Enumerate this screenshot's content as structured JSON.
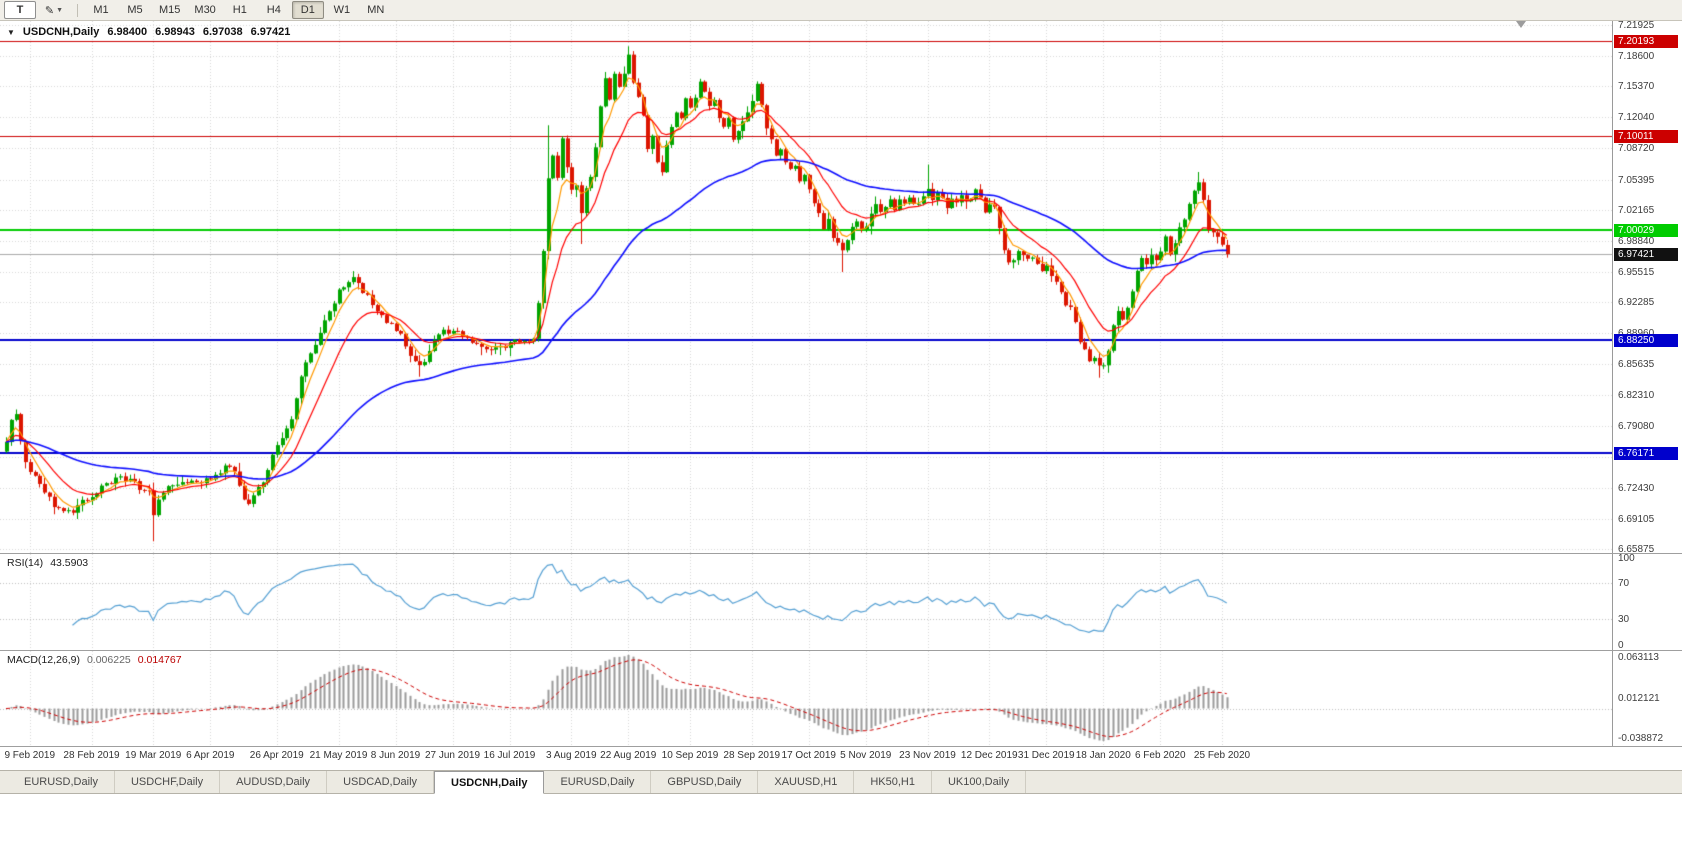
{
  "toolbar": {
    "text_tool_label": "T",
    "draw_tool_icon": "pencil-icon",
    "timeframes": [
      "M1",
      "M5",
      "M15",
      "M30",
      "H1",
      "H4",
      "D1",
      "W1",
      "MN"
    ],
    "active_timeframe": "D1"
  },
  "chart": {
    "header": {
      "symbol": "USDCNH,Daily",
      "open": "6.98400",
      "high": "6.98943",
      "low": "6.97038",
      "close": "6.97421"
    },
    "price_axis": [
      "7.21925",
      "7.18600",
      "7.15370",
      "7.12040",
      "7.08720",
      "7.05395",
      "7.02165",
      "6.98840",
      "6.95515",
      "6.92285",
      "6.88960",
      "6.85635",
      "6.82310",
      "6.79080",
      "6.75755",
      "6.72430",
      "6.69105",
      "6.65875"
    ],
    "levels": [
      {
        "price": 7.20193,
        "label": "7.20193",
        "color": "#cc0000",
        "width": 1
      },
      {
        "price": 7.10011,
        "label": "7.10011",
        "color": "#cc0000",
        "width": 1
      },
      {
        "price": 7.00029,
        "label": "7.00029",
        "color": "#00cc00",
        "width": 2
      },
      {
        "price": 6.8825,
        "label": "6.88250",
        "color": "#0000cc",
        "width": 2
      },
      {
        "price": 6.76171,
        "label": "6.76171",
        "color": "#0000cc",
        "width": 2
      }
    ],
    "current_price": {
      "price": 6.97421,
      "label": "6.97421",
      "color": "#111111"
    },
    "date_labels": [
      {
        "d": 5,
        "label": "9 Feb 2019"
      },
      {
        "d": 18,
        "label": "28 Feb 2019"
      },
      {
        "d": 31,
        "label": "19 Mar 2019"
      },
      {
        "d": 43,
        "label": "6 Apr 2019"
      },
      {
        "d": 57,
        "label": "26 Apr 2019"
      },
      {
        "d": 70,
        "label": "21 May 2019"
      },
      {
        "d": 82,
        "label": "8 Jun 2019"
      },
      {
        "d": 94,
        "label": "27 Jun 2019"
      },
      {
        "d": 106,
        "label": "16 Jul 2019"
      },
      {
        "d": 119,
        "label": "3 Aug 2019"
      },
      {
        "d": 131,
        "label": "22 Aug 2019"
      },
      {
        "d": 144,
        "label": "10 Sep 2019"
      },
      {
        "d": 157,
        "label": "28 Sep 2019"
      },
      {
        "d": 169,
        "label": "17 Oct 2019"
      },
      {
        "d": 181,
        "label": "5 Nov 2019"
      },
      {
        "d": 194,
        "label": "23 Nov 2019"
      },
      {
        "d": 207,
        "label": "12 Dec 2019"
      },
      {
        "d": 219,
        "label": "31 Dec 2019"
      },
      {
        "d": 231,
        "label": "18 Jan 2020"
      },
      {
        "d": 243,
        "label": "6 Feb 2020"
      },
      {
        "d": 256,
        "label": "25 Feb 2020"
      }
    ]
  },
  "rsi": {
    "name": "RSI(14)",
    "value": "43.5903",
    "axis_labels": [
      "100",
      "70",
      "30",
      "0"
    ],
    "levels": [
      70,
      30
    ]
  },
  "macd": {
    "name": "MACD(12,26,9)",
    "value_main": "0.006225",
    "value_signal": "0.014767",
    "axis_labels": [
      "0.063113",
      "0.012121",
      "-0.038872"
    ]
  },
  "tabs": {
    "items": [
      "EURUSD,Daily",
      "USDCHF,Daily",
      "AUDUSD,Daily",
      "USDCAD,Daily",
      "USDCNH,Daily",
      "EURUSD,Daily",
      "GBPUSD,Daily",
      "XAUUSD,H1",
      "HK50,H1",
      "UK100,Daily"
    ],
    "active_index": 4
  },
  "chart_data": {
    "type": "candlestick",
    "title": "USDCNH, Daily",
    "n_days": 258,
    "y_axis_range": [
      6.65875,
      7.21925
    ],
    "x_axis_dates": [
      "9 Feb 2019",
      "28 Feb 2019",
      "19 Mar 2019",
      "6 Apr 2019",
      "26 Apr 2019",
      "21 May 2019",
      "8 Jun 2019",
      "27 Jun 2019",
      "16 Jul 2019",
      "3 Aug 2019",
      "22 Aug 2019",
      "10 Sep 2019",
      "28 Sep 2019",
      "17 Oct 2019",
      "5 Nov 2019",
      "23 Nov 2019",
      "12 Dec 2019",
      "31 Dec 2019",
      "18 Jan 2020",
      "6 Feb 2020",
      "25 Feb 2020"
    ],
    "horizontal_levels": [
      7.20193,
      7.10011,
      7.00029,
      6.8825,
      6.76171
    ],
    "last_candle": {
      "open": 6.984,
      "high": 6.98943,
      "low": 6.97038,
      "close": 6.97421
    },
    "price_path_anchors": [
      [
        0,
        6.775
      ],
      [
        1,
        6.795
      ],
      [
        2,
        6.8
      ],
      [
        3,
        6.772
      ],
      [
        4,
        6.752
      ],
      [
        6,
        6.735
      ],
      [
        8,
        6.72
      ],
      [
        10,
        6.705
      ],
      [
        12,
        6.7
      ],
      [
        14,
        6.695
      ],
      [
        16,
        6.71
      ],
      [
        19,
        6.72
      ],
      [
        22,
        6.732
      ],
      [
        24,
        6.735
      ],
      [
        27,
        6.728
      ],
      [
        30,
        6.72
      ],
      [
        31,
        6.695
      ],
      [
        32,
        6.715
      ],
      [
        34,
        6.725
      ],
      [
        38,
        6.728
      ],
      [
        41,
        6.73
      ],
      [
        44,
        6.738
      ],
      [
        46,
        6.748
      ],
      [
        48,
        6.74
      ],
      [
        50,
        6.715
      ],
      [
        51,
        6.708
      ],
      [
        53,
        6.725
      ],
      [
        54,
        6.732
      ],
      [
        56,
        6.758
      ],
      [
        58,
        6.778
      ],
      [
        60,
        6.8
      ],
      [
        61,
        6.82
      ],
      [
        62,
        6.845
      ],
      [
        64,
        6.868
      ],
      [
        66,
        6.888
      ],
      [
        67,
        6.9
      ],
      [
        68,
        6.912
      ],
      [
        70,
        6.935
      ],
      [
        72,
        6.944
      ],
      [
        73,
        6.948
      ],
      [
        75,
        6.935
      ],
      [
        77,
        6.92
      ],
      [
        79,
        6.908
      ],
      [
        81,
        6.9
      ],
      [
        83,
        6.888
      ],
      [
        84,
        6.875
      ],
      [
        86,
        6.862
      ],
      [
        87,
        6.855
      ],
      [
        89,
        6.868
      ],
      [
        90,
        6.88
      ],
      [
        92,
        6.89
      ],
      [
        94,
        6.895
      ],
      [
        96,
        6.885
      ],
      [
        99,
        6.878
      ],
      [
        102,
        6.872
      ],
      [
        104,
        6.873
      ],
      [
        106,
        6.878
      ],
      [
        108,
        6.88
      ],
      [
        110,
        6.884
      ],
      [
        111,
        6.886
      ],
      [
        112,
        6.92
      ],
      [
        113,
        6.975
      ],
      [
        114,
        7.055
      ],
      [
        115,
        7.08
      ],
      [
        116,
        7.058
      ],
      [
        117,
        7.095
      ],
      [
        118,
        7.07
      ],
      [
        119,
        7.042
      ],
      [
        120,
        7.05
      ],
      [
        121,
        7.02
      ],
      [
        122,
        7.045
      ],
      [
        123,
        7.06
      ],
      [
        124,
        7.09
      ],
      [
        125,
        7.13
      ],
      [
        126,
        7.16
      ],
      [
        127,
        7.142
      ],
      [
        128,
        7.168
      ],
      [
        129,
        7.15
      ],
      [
        130,
        7.168
      ],
      [
        131,
        7.19
      ],
      [
        132,
        7.16
      ],
      [
        133,
        7.142
      ],
      [
        134,
        7.12
      ],
      [
        135,
        7.09
      ],
      [
        136,
        7.1
      ],
      [
        137,
        7.072
      ],
      [
        138,
        7.065
      ],
      [
        139,
        7.09
      ],
      [
        140,
        7.11
      ],
      [
        141,
        7.128
      ],
      [
        142,
        7.118
      ],
      [
        143,
        7.138
      ],
      [
        144,
        7.128
      ],
      [
        145,
        7.14
      ],
      [
        146,
        7.158
      ],
      [
        147,
        7.148
      ],
      [
        148,
        7.13
      ],
      [
        149,
        7.138
      ],
      [
        150,
        7.12
      ],
      [
        151,
        7.11
      ],
      [
        152,
        7.118
      ],
      [
        153,
        7.1
      ],
      [
        154,
        7.108
      ],
      [
        155,
        7.118
      ],
      [
        156,
        7.128
      ],
      [
        157,
        7.14
      ],
      [
        158,
        7.155
      ],
      [
        159,
        7.13
      ],
      [
        160,
        7.112
      ],
      [
        161,
        7.1
      ],
      [
        162,
        7.082
      ],
      [
        163,
        7.088
      ],
      [
        164,
        7.072
      ],
      [
        165,
        7.062
      ],
      [
        166,
        7.068
      ],
      [
        167,
        7.052
      ],
      [
        168,
        7.058
      ],
      [
        169,
        7.042
      ],
      [
        170,
        7.032
      ],
      [
        171,
        7.02
      ],
      [
        172,
        7.002
      ],
      [
        173,
        7.01
      ],
      [
        174,
        6.992
      ],
      [
        175,
        6.985
      ],
      [
        176,
        6.975
      ],
      [
        177,
        6.99
      ],
      [
        178,
        7.0
      ],
      [
        179,
        7.008
      ],
      [
        180,
        6.998
      ],
      [
        181,
        7.005
      ],
      [
        182,
        7.018
      ],
      [
        183,
        7.028
      ],
      [
        184,
        7.02
      ],
      [
        185,
        7.025
      ],
      [
        186,
        7.03
      ],
      [
        187,
        7.022
      ],
      [
        188,
        7.034
      ],
      [
        189,
        7.03
      ],
      [
        190,
        7.038
      ],
      [
        191,
        7.026
      ],
      [
        192,
        7.03
      ],
      [
        193,
        7.038
      ],
      [
        194,
        7.045
      ],
      [
        195,
        7.032
      ],
      [
        196,
        7.04
      ],
      [
        197,
        7.032
      ],
      [
        198,
        7.026
      ],
      [
        199,
        7.034
      ],
      [
        200,
        7.03
      ],
      [
        201,
        7.04
      ],
      [
        202,
        7.032
      ],
      [
        203,
        7.036
      ],
      [
        204,
        7.04
      ],
      [
        205,
        7.032
      ],
      [
        206,
        7.022
      ],
      [
        207,
        7.028
      ],
      [
        208,
        7.025
      ],
      [
        209,
        7.0
      ],
      [
        210,
        6.978
      ],
      [
        211,
        6.962
      ],
      [
        212,
        6.97
      ],
      [
        213,
        6.98
      ],
      [
        214,
        6.975
      ],
      [
        215,
        6.966
      ],
      [
        216,
        6.97
      ],
      [
        217,
        6.962
      ],
      [
        218,
        6.956
      ],
      [
        219,
        6.96
      ],
      [
        220,
        6.95
      ],
      [
        221,
        6.942
      ],
      [
        222,
        6.932
      ],
      [
        223,
        6.922
      ],
      [
        224,
        6.915
      ],
      [
        225,
        6.898
      ],
      [
        226,
        6.882
      ],
      [
        227,
        6.872
      ],
      [
        228,
        6.858
      ],
      [
        229,
        6.862
      ],
      [
        230,
        6.852
      ],
      [
        231,
        6.856
      ],
      [
        232,
        6.87
      ],
      [
        233,
        6.895
      ],
      [
        234,
        6.91
      ],
      [
        235,
        6.902
      ],
      [
        236,
        6.92
      ],
      [
        237,
        6.935
      ],
      [
        238,
        6.958
      ],
      [
        239,
        6.97
      ],
      [
        240,
        6.966
      ],
      [
        241,
        6.976
      ],
      [
        242,
        6.97
      ],
      [
        243,
        6.98
      ],
      [
        244,
        6.99
      ],
      [
        245,
        6.976
      ],
      [
        246,
        6.986
      ],
      [
        247,
        7.0
      ],
      [
        248,
        7.01
      ],
      [
        249,
        7.025
      ],
      [
        250,
        7.045
      ],
      [
        251,
        7.05
      ],
      [
        252,
        7.032
      ],
      [
        253,
        7.002
      ],
      [
        254,
        6.997
      ],
      [
        255,
        6.99
      ],
      [
        256,
        6.986
      ],
      [
        257,
        6.97421
      ]
    ],
    "wick_events": [
      {
        "d": 31,
        "low": 6.667
      },
      {
        "d": 73,
        "high": 6.956
      },
      {
        "d": 87,
        "low": 6.843
      },
      {
        "d": 114,
        "high": 7.112
      },
      {
        "d": 121,
        "low": 6.985
      },
      {
        "d": 131,
        "high": 7.1965
      },
      {
        "d": 176,
        "low": 6.955
      },
      {
        "d": 194,
        "high": 7.07
      },
      {
        "d": 230,
        "low": 6.842
      },
      {
        "d": 251,
        "high": 7.062
      }
    ],
    "indicators": {
      "moving_averages": [
        {
          "name": "fast",
          "period": 5,
          "color": "#ff9900"
        },
        {
          "name": "mid",
          "period": 13,
          "color": "#ff0000"
        },
        {
          "name": "slow",
          "period": 55,
          "color": "#0d0dff"
        }
      ],
      "rsi": {
        "period": 14,
        "current": 43.5903,
        "levels": [
          30,
          70
        ],
        "range": [
          0,
          100
        ]
      },
      "macd": {
        "fast": 12,
        "slow": 26,
        "signal": 9,
        "current_main": 0.006225,
        "current_signal": 0.014767,
        "scale_max": 0.063113,
        "scale_min": -0.038872
      }
    },
    "colors": {
      "up": "#00a400",
      "down": "#dc1500",
      "ma_fast": "#ff9900",
      "ma_mid": "#ff0000",
      "ma_slow": "#0d0dff",
      "rsi": "#56a0d3",
      "macd_hist": "#9b9b9b",
      "macd_signal": "#cc0000",
      "grid": "#d7d7d7"
    }
  }
}
